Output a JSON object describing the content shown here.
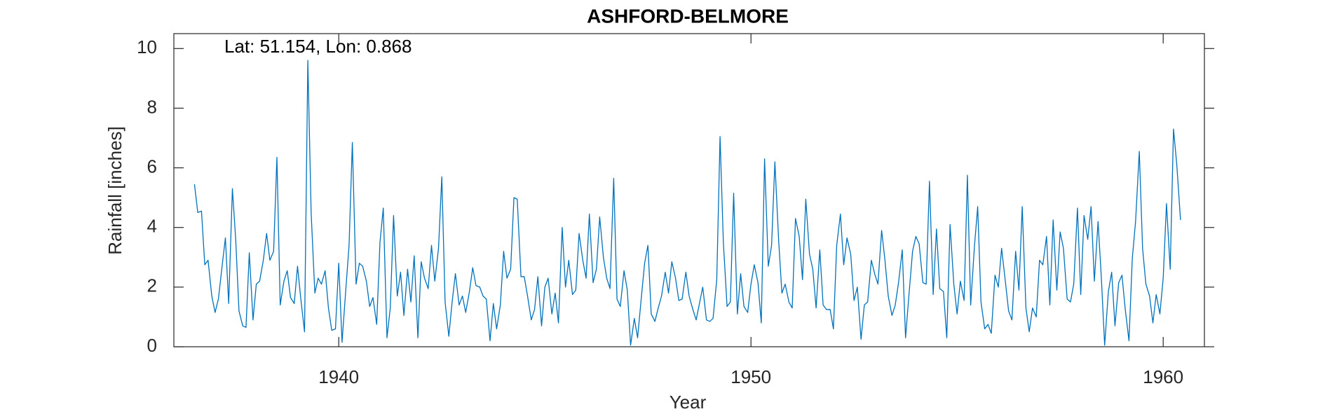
{
  "chart_data": {
    "type": "line",
    "title": "ASHFORD-BELMORE",
    "annotation": "Lat: 51.154, Lon: 0.868",
    "xlabel": "Year",
    "ylabel": "Rainfall [inches]",
    "xlim": [
      1936,
      1961
    ],
    "xticks": [
      1940,
      1950,
      1960
    ],
    "ylim": [
      0,
      10.5
    ],
    "yticks": [
      0,
      2,
      4,
      6,
      8,
      10
    ],
    "grid": false,
    "x": [
      1936.5,
      1936.58,
      1936.67,
      1936.75,
      1936.83,
      1936.92,
      1937,
      1937.08,
      1937.17,
      1937.25,
      1937.33,
      1937.42,
      1937.5,
      1937.58,
      1937.67,
      1937.75,
      1937.83,
      1937.92,
      1938,
      1938.08,
      1938.17,
      1938.25,
      1938.33,
      1938.42,
      1938.5,
      1938.58,
      1938.67,
      1938.75,
      1938.83,
      1938.92,
      1939,
      1939.08,
      1939.17,
      1939.25,
      1939.33,
      1939.42,
      1939.5,
      1939.58,
      1939.67,
      1939.75,
      1939.83,
      1939.92,
      1940,
      1940.08,
      1940.17,
      1940.25,
      1940.33,
      1940.42,
      1940.5,
      1940.58,
      1940.67,
      1940.75,
      1940.83,
      1940.92,
      1941,
      1941.08,
      1941.17,
      1941.25,
      1941.33,
      1941.42,
      1941.5,
      1941.58,
      1941.67,
      1941.75,
      1941.83,
      1941.92,
      1942,
      1942.08,
      1942.17,
      1942.25,
      1942.33,
      1942.42,
      1942.5,
      1942.58,
      1942.67,
      1942.75,
      1942.83,
      1942.92,
      1943,
      1943.08,
      1943.17,
      1943.25,
      1943.33,
      1943.42,
      1943.5,
      1943.58,
      1943.67,
      1943.75,
      1943.83,
      1943.92,
      1944,
      1944.08,
      1944.17,
      1944.25,
      1944.33,
      1944.42,
      1944.5,
      1944.58,
      1944.67,
      1944.75,
      1944.83,
      1944.92,
      1945,
      1945.08,
      1945.17,
      1945.25,
      1945.33,
      1945.42,
      1945.5,
      1945.58,
      1945.67,
      1945.75,
      1945.83,
      1945.92,
      1946,
      1946.08,
      1946.17,
      1946.25,
      1946.33,
      1946.42,
      1946.5,
      1946.58,
      1946.67,
      1946.75,
      1946.83,
      1946.92,
      1947,
      1947.08,
      1947.17,
      1947.25,
      1947.33,
      1947.42,
      1947.5,
      1947.58,
      1947.67,
      1947.75,
      1947.83,
      1947.92,
      1948,
      1948.08,
      1948.17,
      1948.25,
      1948.33,
      1948.42,
      1948.5,
      1948.58,
      1948.67,
      1948.75,
      1948.83,
      1948.92,
      1949,
      1949.08,
      1949.17,
      1949.25,
      1949.33,
      1949.42,
      1949.5,
      1949.58,
      1949.67,
      1949.75,
      1949.83,
      1949.92,
      1950,
      1950.08,
      1950.17,
      1950.25,
      1950.33,
      1950.42,
      1950.5,
      1950.58,
      1950.67,
      1950.75,
      1950.83,
      1950.92,
      1951,
      1951.08,
      1951.17,
      1951.25,
      1951.33,
      1951.42,
      1951.5,
      1951.58,
      1951.67,
      1951.75,
      1951.83,
      1951.92,
      1952,
      1952.08,
      1952.17,
      1952.25,
      1952.33,
      1952.42,
      1952.5,
      1952.58,
      1952.67,
      1952.75,
      1952.83,
      1952.92,
      1953,
      1953.08,
      1953.17,
      1953.25,
      1953.33,
      1953.42,
      1953.5,
      1953.58,
      1953.67,
      1953.75,
      1953.83,
      1953.92,
      1954,
      1954.08,
      1954.17,
      1954.25,
      1954.33,
      1954.42,
      1954.5,
      1954.58,
      1954.67,
      1954.75,
      1954.83,
      1954.92,
      1955,
      1955.08,
      1955.17,
      1955.25,
      1955.33,
      1955.42,
      1955.5,
      1955.58,
      1955.67,
      1955.75,
      1955.83,
      1955.92,
      1956,
      1956.08,
      1956.17,
      1956.25,
      1956.33,
      1956.42,
      1956.5,
      1956.58,
      1956.67,
      1956.75,
      1956.83,
      1956.92,
      1957,
      1957.08,
      1957.17,
      1957.25,
      1957.33,
      1957.42,
      1957.5,
      1957.58,
      1957.67,
      1957.75,
      1957.83,
      1957.92,
      1958,
      1958.08,
      1958.17,
      1958.25,
      1958.33,
      1958.42,
      1958.5,
      1958.58,
      1958.67,
      1958.75,
      1958.83,
      1958.92,
      1959,
      1959.08,
      1959.17,
      1959.25,
      1959.33,
      1959.42,
      1959.5,
      1959.58,
      1959.67,
      1959.75,
      1959.83,
      1959.92,
      1960,
      1960.08,
      1960.17,
      1960.25,
      1960.33,
      1960.42
    ],
    "series": [
      {
        "color": "#0072bd",
        "values": [
          5.45,
          4.5,
          4.55,
          2.75,
          2.9,
          1.7,
          1.15,
          1.6,
          2.7,
          3.65,
          1.45,
          5.3,
          3.6,
          1.2,
          0.7,
          0.65,
          3.15,
          0.9,
          2.1,
          2.2,
          2.9,
          3.8,
          2.9,
          3.2,
          6.35,
          1.4,
          2.2,
          2.55,
          1.65,
          1.45,
          2.7,
          1.6,
          0.5,
          9.6,
          4.5,
          1.8,
          2.3,
          2.1,
          2.55,
          1.3,
          0.55,
          0.6,
          2.8,
          0.15,
          1.9,
          3.4,
          6.85,
          2.1,
          2.8,
          2.7,
          2.2,
          1.35,
          1.65,
          0.75,
          3.5,
          4.65,
          0.3,
          1.3,
          4.4,
          1.7,
          2.5,
          1.05,
          2.6,
          1.5,
          3.05,
          0.3,
          2.85,
          2.3,
          1.95,
          3.4,
          2.2,
          3.3,
          5.7,
          1.5,
          0.35,
          1.5,
          2.45,
          1.4,
          1.7,
          1.15,
          1.85,
          2.65,
          2.05,
          2.0,
          1.7,
          1.6,
          0.2,
          1.45,
          0.6,
          1.4,
          3.2,
          2.3,
          2.6,
          5.0,
          4.95,
          2.35,
          2.35,
          1.7,
          0.9,
          1.25,
          2.35,
          0.7,
          2.0,
          2.3,
          1.1,
          1.8,
          0.8,
          4.0,
          2.0,
          2.9,
          1.75,
          1.9,
          3.8,
          2.9,
          2.3,
          4.45,
          2.15,
          2.6,
          4.35,
          3.0,
          2.3,
          1.95,
          5.65,
          1.6,
          1.35,
          2.55,
          1.9,
          0.05,
          0.95,
          0.3,
          1.5,
          2.8,
          3.4,
          1.1,
          0.85,
          1.3,
          1.7,
          2.5,
          1.8,
          2.85,
          2.3,
          1.55,
          1.6,
          2.5,
          1.7,
          1.3,
          0.9,
          1.45,
          2.0,
          0.9,
          0.85,
          0.95,
          2.25,
          7.05,
          3.5,
          1.35,
          1.5,
          5.15,
          1.1,
          2.45,
          1.35,
          1.15,
          2.1,
          2.75,
          2.15,
          0.8,
          6.3,
          2.7,
          3.4,
          6.2,
          3.6,
          1.8,
          2.1,
          1.5,
          1.3,
          4.3,
          3.7,
          2.25,
          4.95,
          3.1,
          2.6,
          1.3,
          3.25,
          1.4,
          1.25,
          1.25,
          0.6,
          3.4,
          4.45,
          2.75,
          3.65,
          3.1,
          1.55,
          2.0,
          0.25,
          1.4,
          1.5,
          2.9,
          2.45,
          2.1,
          3.9,
          2.9,
          1.7,
          1.05,
          1.4,
          2.15,
          3.25,
          0.3,
          1.7,
          3.2,
          3.7,
          3.45,
          2.15,
          2.1,
          5.55,
          1.75,
          3.95,
          1.95,
          1.85,
          0.3,
          4.1,
          2.1,
          1.1,
          2.2,
          1.55,
          5.75,
          1.4,
          3.35,
          4.7,
          1.5,
          0.6,
          0.75,
          0.45,
          2.4,
          2.0,
          3.3,
          2.2,
          1.2,
          0.9,
          3.2,
          1.9,
          4.7,
          1.3,
          0.5,
          1.3,
          1.0,
          2.9,
          2.75,
          3.7,
          1.4,
          4.25,
          1.9,
          3.85,
          3.3,
          1.6,
          1.5,
          2.1,
          4.65,
          1.75,
          4.4,
          3.6,
          4.7,
          2.2,
          4.2,
          2.3,
          0.05,
          1.85,
          2.5,
          0.7,
          2.15,
          2.4,
          1.25,
          0.2,
          2.95,
          4.2,
          6.55,
          3.3,
          2.1,
          1.7,
          0.8,
          1.75,
          1.1,
          2.3,
          4.8,
          2.6,
          7.3,
          6.1,
          4.25
        ]
      }
    ]
  }
}
